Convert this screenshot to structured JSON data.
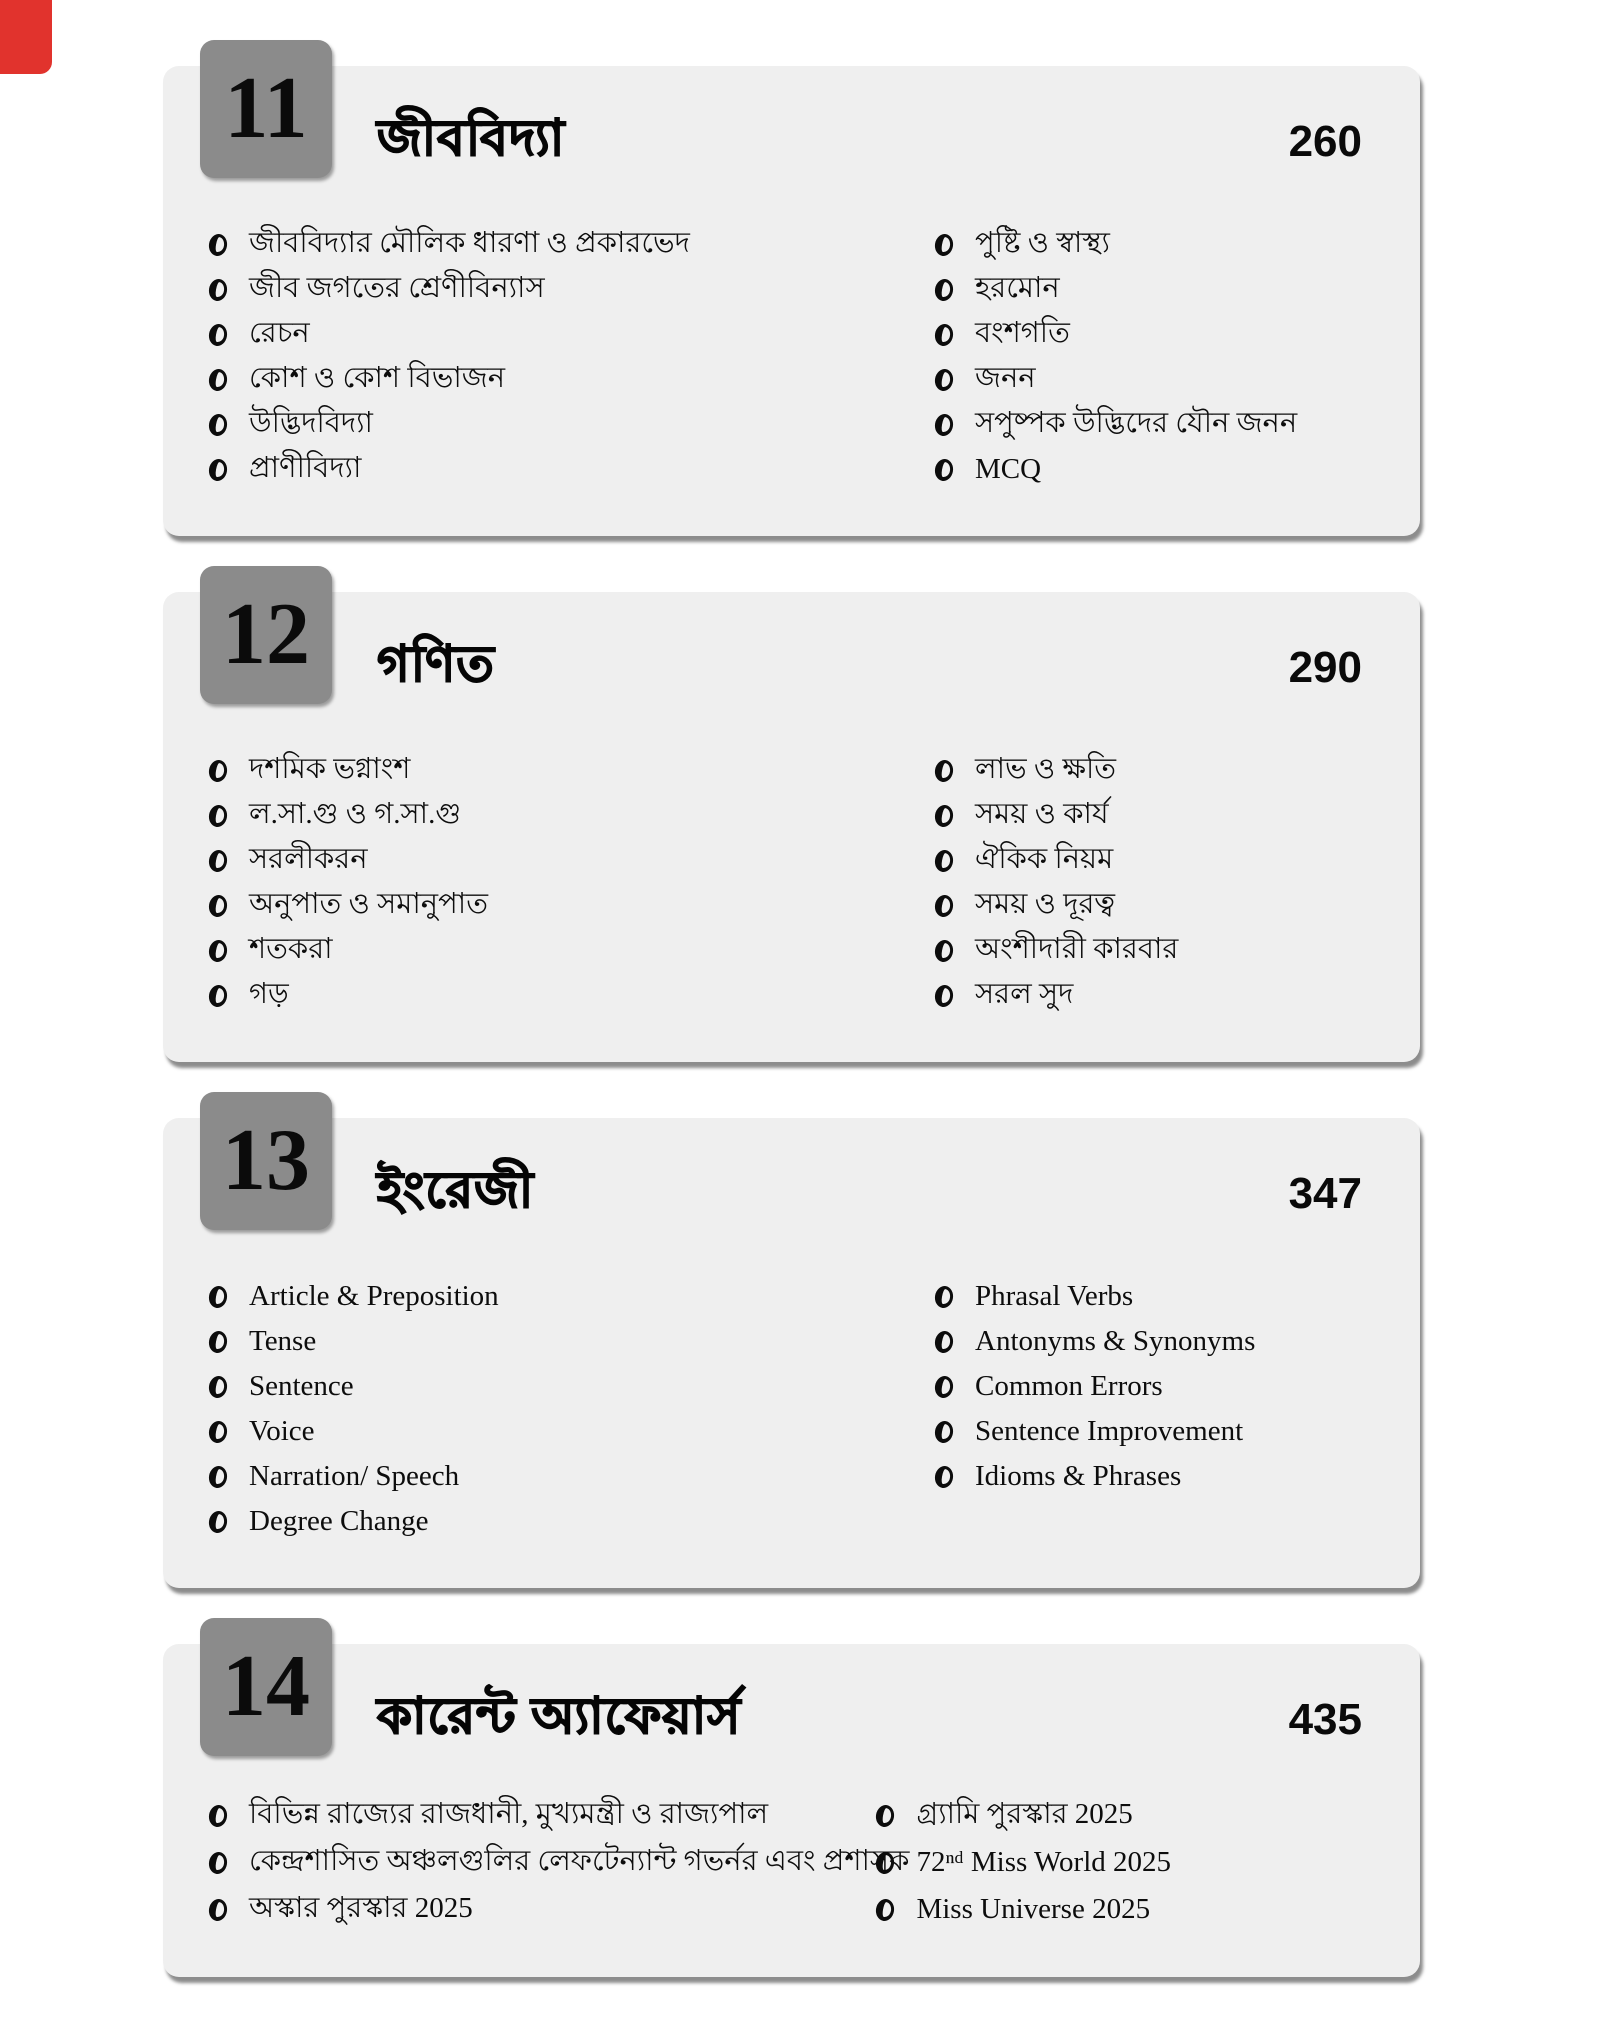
{
  "colors": {
    "page_bg": "#ffffff",
    "card_bg": "#efefef",
    "badge_bg": "#8b8b8b",
    "accent_red": "#e1332d",
    "text": "#111111"
  },
  "sections": [
    {
      "number": "11",
      "title": "জীববিদ্যা",
      "page": "260",
      "left": [
        "জীববিদ্যার মৌলিক ধারণা ও প্রকারভেদ",
        "জীব জগতের শ্রেণীবিন্যাস",
        "রেচন",
        "কোশ ও কোশ বিভাজন",
        "উদ্ভিদবিদ্যা",
        "প্রাণীবিদ্যা"
      ],
      "right": [
        "পুষ্টি ও স্বাস্থ্য",
        "হরমোন",
        "বংশগতি",
        "জনন",
        "সপুষ্পক উদ্ভিদের যৌন জনন",
        "MCQ"
      ]
    },
    {
      "number": "12",
      "title": "গণিত",
      "page": "290",
      "left": [
        "দশমিক ভগ্নাংশ",
        "ল.সা.গু ও গ.সা.গু",
        "সরলীকরন",
        "অনুপাত  ও সমানুপাত",
        "শতকরা",
        "গড়"
      ],
      "right": [
        "লাভ ও ক্ষতি",
        "সময় ও কার্য",
        "ঐকিক নিয়ম",
        "সময় ও দূরত্ব",
        "অংশীদারী কারবার",
        "সরল সুদ"
      ]
    },
    {
      "number": "13",
      "title": "ইংরেজী",
      "page": "347",
      "left": [
        "Article  & Preposition",
        "Tense",
        "Sentence",
        "Voice",
        "Narration/ Speech",
        "Degree Change"
      ],
      "right": [
        "Phrasal Verbs",
        "Antonyms & Synonyms",
        "Common Errors",
        "Sentence Improvement",
        "Idioms & Phrases"
      ]
    },
    {
      "number": "14",
      "title": "কারেন্ট অ্যাফেয়ার্স",
      "page": "435",
      "left": [
        "বিভিন্ন রাজ্যের রাজধানী, মুখ্যমন্ত্রী ও রাজ্যপাল",
        "কেন্দ্রশাসিত অঞ্চলগুলির লেফটেন্যান্ট গভর্নর এবং প্রশাসক",
        "অস্কার পুরস্কার 2025"
      ],
      "right": [
        "গ্র্যামি পুরস্কার 2025",
        "72ⁿᵈ  Miss World 2025",
        "Miss Universe 2025"
      ]
    }
  ]
}
